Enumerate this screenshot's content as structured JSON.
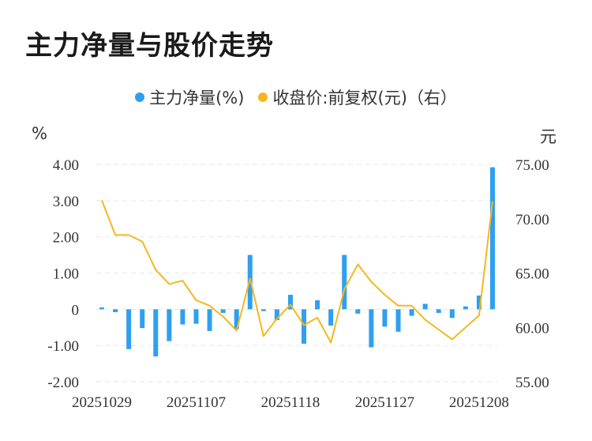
{
  "chart_data": {
    "type": "bar+line",
    "title": "主力净量与股价走势",
    "left_unit": "%",
    "right_unit": "元",
    "legend": [
      {
        "label": "主力净量(%)",
        "color": "#2f9ff0"
      },
      {
        "label": "收盘价:前复权(元)（右）",
        "color": "#f5b71f"
      }
    ],
    "y_left": {
      "ticks": [
        "4.00",
        "3.00",
        "2.00",
        "1.00",
        "0",
        "-1.00",
        "-2.00"
      ],
      "min": -2,
      "max": 4
    },
    "y_right": {
      "ticks": [
        "75.00",
        "70.00",
        "65.00",
        "60.00",
        "55.00"
      ],
      "min": 55,
      "max": 75
    },
    "x_ticks": [
      {
        "label": "20251029",
        "index": 0
      },
      {
        "label": "20251107",
        "index": 7
      },
      {
        "label": "20251118",
        "index": 14
      },
      {
        "label": "20251127",
        "index": 21
      },
      {
        "label": "20251208",
        "index": 28
      }
    ],
    "n_points": 30,
    "series": [
      {
        "name": "主力净量(%)",
        "kind": "bar",
        "axis": "left",
        "color": "#2f9ff0",
        "values": [
          0.05,
          -0.08,
          -1.1,
          -0.52,
          -1.3,
          -0.88,
          -0.42,
          -0.4,
          -0.6,
          -0.1,
          -0.55,
          1.5,
          -0.05,
          -0.3,
          0.4,
          -0.95,
          0.25,
          -0.45,
          1.5,
          -0.12,
          -1.05,
          -0.48,
          -0.62,
          -0.18,
          0.15,
          -0.1,
          -0.24,
          0.08,
          0.38,
          3.92
        ]
      },
      {
        "name": "收盘价:前复权(元)（右）",
        "kind": "line",
        "axis": "right",
        "color": "#f5b71f",
        "values": [
          71.7,
          68.5,
          68.5,
          67.9,
          65.3,
          64.0,
          64.3,
          62.5,
          62.0,
          61.0,
          59.7,
          64.5,
          59.2,
          60.8,
          62.1,
          60.2,
          60.9,
          58.6,
          63.5,
          65.8,
          64.2,
          63.0,
          62.0,
          62.0,
          60.7,
          59.8,
          58.9,
          60.0,
          61.1,
          71.6
        ]
      }
    ],
    "grid": true
  }
}
